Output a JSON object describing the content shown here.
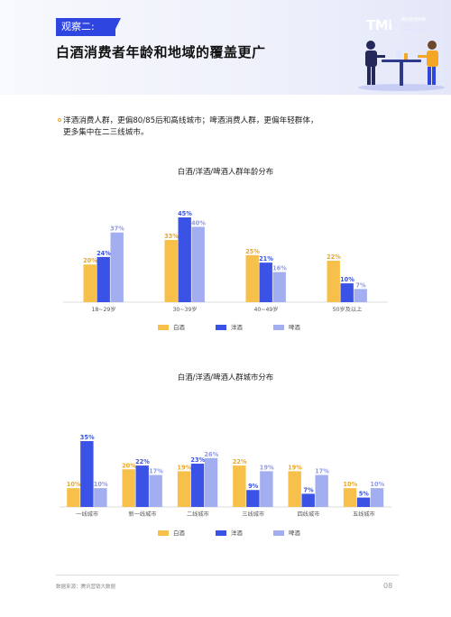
{
  "header": {
    "tag": "观察二:",
    "title": "白酒消费者年龄和地域的覆盖更广",
    "logo_mark": "TMi",
    "logo_cn": "腾讯营销洞察",
    "logo_en1": "Tencent",
    "logo_en2": "Marketing Insight"
  },
  "bullet": {
    "line1": "洋酒消费人群，更偏80/85后和高线城市；啤酒消费人群，更偏年轻群体，",
    "line2": "更多集中在二三线城市。"
  },
  "colors": {
    "baijiu": "#f7c04a",
    "yangjiu": "#3a53e6",
    "pijiu": "#a3aef0",
    "accent": "#2f45e0"
  },
  "chart_data": [
    {
      "type": "bar",
      "title": "白酒/洋酒/啤酒人群年龄分布",
      "categories": [
        "18~29岁",
        "30~39岁",
        "40~49岁",
        "50岁及以上"
      ],
      "series": [
        {
          "name": "白酒",
          "values": [
            20,
            33,
            25,
            22
          ],
          "labels": [
            "20%",
            "33%",
            "25%",
            "22%"
          ]
        },
        {
          "name": "洋酒",
          "values": [
            24,
            45,
            21,
            10
          ],
          "labels": [
            "24%",
            "45%",
            "21%",
            "10%"
          ]
        },
        {
          "name": "啤酒",
          "values": [
            37,
            40,
            16,
            7
          ],
          "labels": [
            "37%",
            "40%",
            "16%",
            "7%"
          ]
        }
      ],
      "ylim": [
        0,
        45
      ],
      "legend": "bottom"
    },
    {
      "type": "bar",
      "title": "白酒/洋酒/啤酒人群城市分布",
      "categories": [
        "一线城市",
        "新一线城市",
        "二线城市",
        "三线城市",
        "四线城市",
        "五线城市"
      ],
      "series": [
        {
          "name": "白酒",
          "values": [
            10,
            20,
            19,
            22,
            19,
            10
          ],
          "labels": [
            "10%",
            "20%",
            "19%",
            "22%",
            "19%",
            "10%"
          ]
        },
        {
          "name": "洋酒",
          "values": [
            35,
            22,
            23,
            9,
            7,
            5
          ],
          "labels": [
            "35%",
            "22%",
            "23%",
            "9%",
            "7%",
            "5%"
          ]
        },
        {
          "name": "啤酒",
          "values": [
            10,
            17,
            26,
            19,
            17,
            10
          ],
          "labels": [
            "10%",
            "17%",
            "26%",
            "19%",
            "17%",
            "10%"
          ]
        }
      ],
      "ylim": [
        0,
        35
      ],
      "legend": "bottom"
    }
  ],
  "footer": {
    "source": "数据来源：腾讯营销大数据",
    "page": "08"
  }
}
